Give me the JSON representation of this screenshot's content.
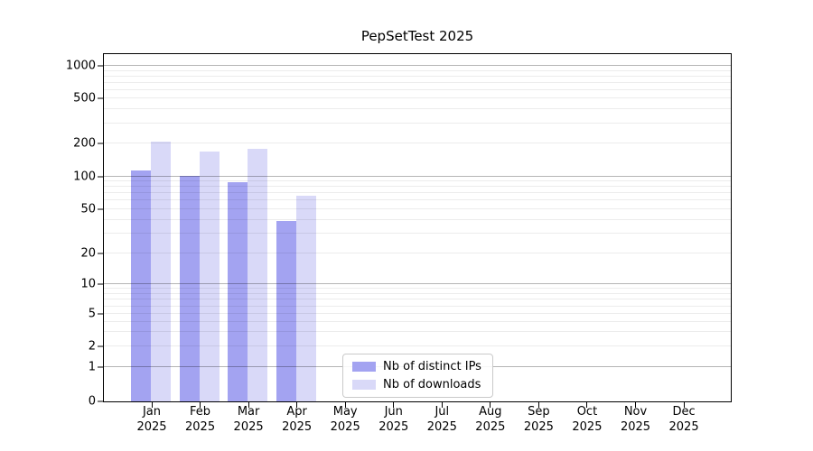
{
  "chart_data": {
    "type": "bar",
    "title": "PepSetTest 2025",
    "categories": [
      "Jan 2025",
      "Feb 2025",
      "Mar 2025",
      "Apr 2025",
      "May 2025",
      "Jun 2025",
      "Jul 2025",
      "Aug 2025",
      "Sep 2025",
      "Oct 2025",
      "Nov 2025",
      "Dec 2025"
    ],
    "series": [
      {
        "name": "Nb of distinct IPs",
        "color": "#a3a3f1",
        "values": [
          113,
          102,
          89,
          39,
          0,
          0,
          0,
          0,
          0,
          0,
          0,
          0
        ]
      },
      {
        "name": "Nb of downloads",
        "color": "#d9d9f8",
        "values": [
          210,
          170,
          181,
          66,
          0,
          0,
          0,
          0,
          0,
          0,
          0,
          0
        ]
      }
    ],
    "xlabel": "",
    "ylabel": "",
    "yscale": "symlog",
    "yticks": [
      0,
      1,
      2,
      5,
      10,
      20,
      50,
      100,
      200,
      500,
      1000
    ],
    "ylim": [
      0,
      1300
    ],
    "grid": "horizontal major and log-minor gridlines",
    "legend_position": "lower center"
  }
}
